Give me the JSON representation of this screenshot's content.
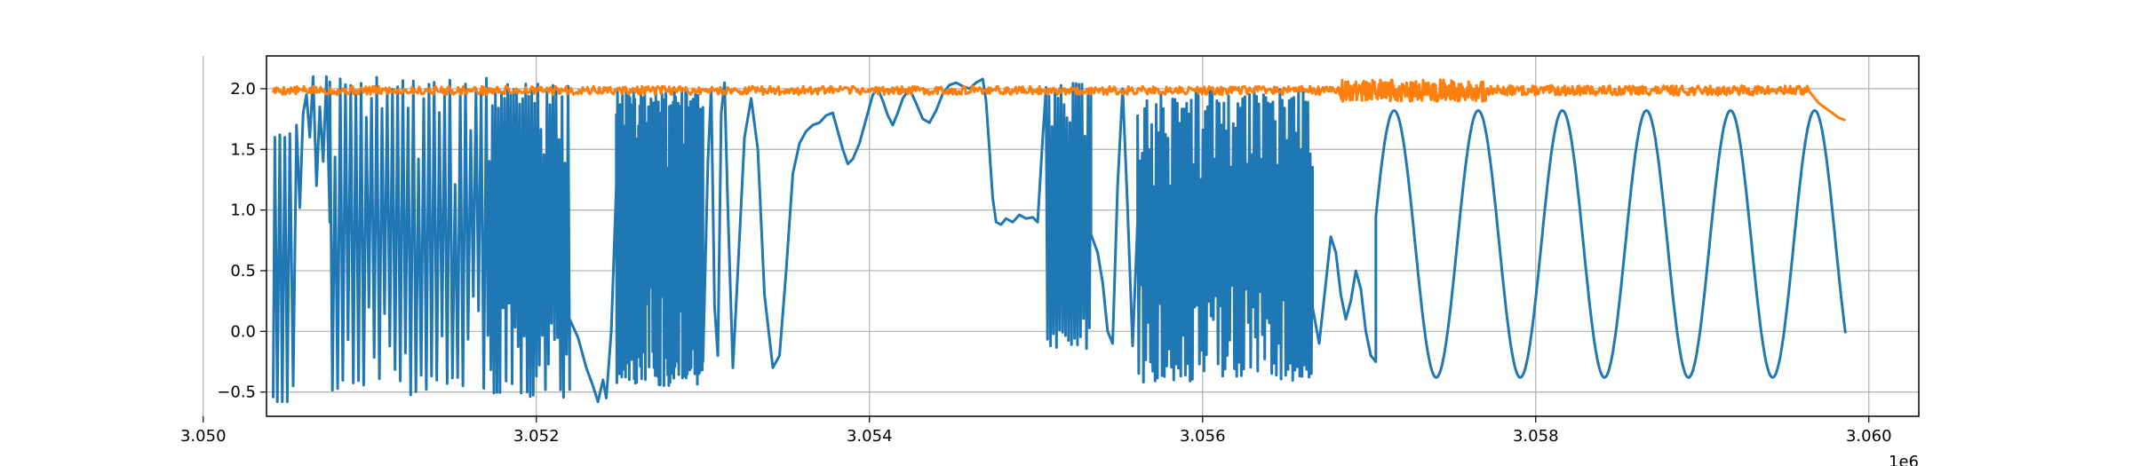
{
  "chart_data": {
    "type": "line",
    "title": "",
    "xlabel": "",
    "ylabel": "",
    "x_offset_label": "1e6",
    "xlim": [
      3050380,
      3060300
    ],
    "ylim": [
      -0.7,
      2.27
    ],
    "xticks": [
      3050000,
      3052000,
      3054000,
      3056000,
      3058000,
      3060000
    ],
    "xtick_labels": [
      "3.050",
      "3.052",
      "3.054",
      "3.056",
      "3.058",
      "3.060"
    ],
    "yticks": [
      -0.5,
      0.0,
      0.5,
      1.0,
      1.5,
      2.0
    ],
    "ytick_labels": [
      "−0.5",
      "0.0",
      "0.5",
      "1.0",
      "1.5",
      "2.0"
    ],
    "grid": true,
    "legend": "none",
    "series": [
      {
        "color": "#1f77b4",
        "segments": [
          {
            "kind": "points",
            "points": [
              [
                3050420,
                -0.55
              ],
              [
                3050430,
                1.6
              ],
              [
                3050445,
                -0.58
              ],
              [
                3050460,
                1.62
              ],
              [
                3050475,
                -0.58
              ],
              [
                3050490,
                1.6
              ],
              [
                3050505,
                -0.58
              ],
              [
                3050520,
                1.63
              ],
              [
                3050540,
                -0.45
              ],
              [
                3050560,
                1.7
              ],
              [
                3050580,
                1.02
              ],
              [
                3050600,
                1.8
              ],
              [
                3050620,
                1.95
              ],
              [
                3050640,
                1.6
              ],
              [
                3050660,
                2.1
              ],
              [
                3050680,
                1.2
              ],
              [
                3050700,
                1.85
              ],
              [
                3050720,
                1.4
              ],
              [
                3050740,
                2.1
              ],
              [
                3050760,
                0.9
              ]
            ]
          },
          {
            "kind": "band",
            "x0": 3050760,
            "x1": 3051700,
            "lo": -0.55,
            "hi": 2.1,
            "n": 60,
            "seed": 11
          },
          {
            "kind": "band",
            "x0": 3051700,
            "x1": 3052200,
            "lo": -0.55,
            "hi": 2.05,
            "n": 55,
            "seed": 23
          },
          {
            "kind": "points",
            "points": [
              [
                3052200,
                0.1
              ],
              [
                3052250,
                -0.05
              ],
              [
                3052300,
                -0.3
              ],
              [
                3052340,
                -0.45
              ],
              [
                3052370,
                -0.58
              ],
              [
                3052400,
                -0.4
              ],
              [
                3052420,
                -0.55
              ],
              [
                3052450,
                0.0
              ],
              [
                3052480,
                1.2
              ]
            ]
          },
          {
            "kind": "band",
            "x0": 3052480,
            "x1": 3053000,
            "lo": -0.45,
            "hi": 2.0,
            "n": 140,
            "seed": 37
          },
          {
            "kind": "points",
            "points": [
              [
                3053000,
                -0.25
              ],
              [
                3053030,
                1.4
              ],
              [
                3053050,
                2.0
              ],
              [
                3053070,
                0.2
              ],
              [
                3053090,
                -0.2
              ],
              [
                3053110,
                1.8
              ],
              [
                3053130,
                2.05
              ],
              [
                3053150,
                1.0
              ],
              [
                3053180,
                -0.3
              ],
              [
                3053210,
                0.5
              ],
              [
                3053250,
                1.6
              ],
              [
                3053290,
                1.92
              ],
              [
                3053330,
                1.5
              ],
              [
                3053370,
                0.3
              ],
              [
                3053420,
                -0.3
              ],
              [
                3053460,
                -0.2
              ],
              [
                3053500,
                0.5
              ],
              [
                3053540,
                1.3
              ],
              [
                3053580,
                1.55
              ],
              [
                3053620,
                1.65
              ],
              [
                3053660,
                1.7
              ],
              [
                3053700,
                1.72
              ],
              [
                3053740,
                1.78
              ],
              [
                3053780,
                1.8
              ],
              [
                3053810,
                1.65
              ],
              [
                3053840,
                1.5
              ],
              [
                3053870,
                1.38
              ],
              [
                3053900,
                1.42
              ],
              [
                3053940,
                1.55
              ],
              [
                3053980,
                1.75
              ],
              [
                3054020,
                1.95
              ],
              [
                3054050,
                2.0
              ],
              [
                3054080,
                1.9
              ],
              [
                3054110,
                1.78
              ],
              [
                3054140,
                1.7
              ],
              [
                3054170,
                1.8
              ],
              [
                3054200,
                1.92
              ],
              [
                3054240,
                2.0
              ],
              [
                3054280,
                1.88
              ],
              [
                3054320,
                1.75
              ],
              [
                3054360,
                1.72
              ],
              [
                3054400,
                1.82
              ],
              [
                3054440,
                1.96
              ],
              [
                3054480,
                2.03
              ],
              [
                3054520,
                2.05
              ],
              [
                3054560,
                2.02
              ],
              [
                3054600,
                2.0
              ],
              [
                3054640,
                2.05
              ],
              [
                3054680,
                2.08
              ],
              [
                3054700,
                1.9
              ],
              [
                3054720,
                1.5
              ],
              [
                3054740,
                1.1
              ],
              [
                3054760,
                0.9
              ],
              [
                3054790,
                0.88
              ],
              [
                3054820,
                0.93
              ],
              [
                3054860,
                0.9
              ],
              [
                3054900,
                0.96
              ],
              [
                3054940,
                0.93
              ],
              [
                3054980,
                0.94
              ],
              [
                3055010,
                0.9
              ],
              [
                3055040,
                1.6
              ],
              [
                3055060,
                2.0
              ]
            ]
          },
          {
            "kind": "band",
            "x0": 3055060,
            "x1": 3055330,
            "lo": -0.15,
            "hi": 2.05,
            "n": 30,
            "seed": 53
          },
          {
            "kind": "points",
            "points": [
              [
                3055330,
                0.8
              ],
              [
                3055370,
                0.65
              ],
              [
                3055400,
                0.4
              ],
              [
                3055430,
                0.0
              ],
              [
                3055460,
                -0.1
              ],
              [
                3055490,
                1.2
              ],
              [
                3055520,
                2.0
              ],
              [
                3055550,
                1.0
              ],
              [
                3055580,
                -0.12
              ],
              [
                3055610,
                0.9
              ]
            ]
          },
          {
            "kind": "band",
            "x0": 3055610,
            "x1": 3056660,
            "lo": -0.42,
            "hi": 2.0,
            "n": 150,
            "seed": 71
          },
          {
            "kind": "points",
            "points": [
              [
                3056660,
                0.2
              ],
              [
                3056700,
                -0.1
              ],
              [
                3056740,
                0.4
              ],
              [
                3056770,
                0.78
              ],
              [
                3056800,
                0.65
              ],
              [
                3056830,
                0.3
              ],
              [
                3056860,
                0.1
              ],
              [
                3056890,
                0.25
              ],
              [
                3056920,
                0.5
              ],
              [
                3056950,
                0.35
              ],
              [
                3056980,
                0.0
              ],
              [
                3057010,
                -0.2
              ],
              [
                3057040,
                -0.25
              ]
            ]
          },
          {
            "kind": "sine",
            "x0": 3057040,
            "x1": 3059860,
            "mid": 0.72,
            "amp": 1.1,
            "period": 505,
            "phase_x": 3057150
          }
        ]
      },
      {
        "color": "#ff7f0e",
        "segments": [
          {
            "kind": "noise",
            "x0": 3050420,
            "x1": 3056830,
            "base": 1.985,
            "amp": 0.035,
            "n": 900,
            "seed": 5
          },
          {
            "kind": "noise",
            "x0": 3056830,
            "x1": 3057700,
            "base": 1.985,
            "amp": 0.09,
            "n": 220,
            "seed": 9
          },
          {
            "kind": "noise",
            "x0": 3057700,
            "x1": 3059640,
            "base": 1.985,
            "amp": 0.04,
            "n": 380,
            "seed": 13
          },
          {
            "kind": "points",
            "points": [
              [
                3059640,
                1.98
              ],
              [
                3059700,
                1.88
              ],
              [
                3059760,
                1.82
              ],
              [
                3059820,
                1.76
              ],
              [
                3059860,
                1.74
              ]
            ]
          }
        ]
      }
    ]
  }
}
